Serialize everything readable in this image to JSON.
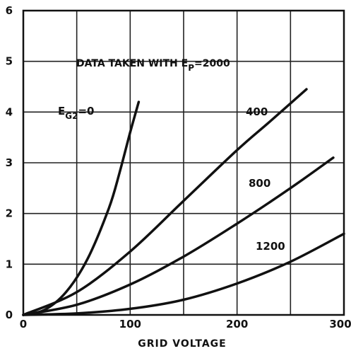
{
  "chart_data": {
    "type": "line",
    "xlabel": "GRID VOLTAGE",
    "ylabel": "",
    "xlim": [
      0,
      300
    ],
    "ylim": [
      0,
      6
    ],
    "x_ticks": [
      "0",
      "100",
      "200",
      "300"
    ],
    "y_ticks": [
      "0",
      "1",
      "2",
      "3",
      "4",
      "5",
      "6"
    ],
    "grid": true,
    "annotation": {
      "prefix": "DATA TAKEN WITH E",
      "sub": "P",
      "suffix": "=2000"
    },
    "series": [
      {
        "name": "E",
        "name_sub": "G2",
        "name_suffix": "=0",
        "x": [
          0,
          20,
          40,
          60,
          80,
          90,
          100,
          108
        ],
        "y": [
          0,
          0.1,
          0.45,
          1.1,
          2.1,
          2.8,
          3.6,
          4.2
        ]
      },
      {
        "name": "400",
        "x": [
          0,
          50,
          100,
          150,
          200,
          230,
          265
        ],
        "y": [
          0,
          0.45,
          1.25,
          2.25,
          3.25,
          3.8,
          4.45
        ]
      },
      {
        "name": "800",
        "x": [
          0,
          50,
          100,
          150,
          200,
          250,
          290
        ],
        "y": [
          0,
          0.2,
          0.6,
          1.15,
          1.8,
          2.5,
          3.1
        ]
      },
      {
        "name": "1200",
        "x": [
          0,
          50,
          100,
          150,
          200,
          250,
          300
        ],
        "y": [
          0,
          0.03,
          0.12,
          0.3,
          0.62,
          1.05,
          1.6
        ]
      }
    ]
  }
}
